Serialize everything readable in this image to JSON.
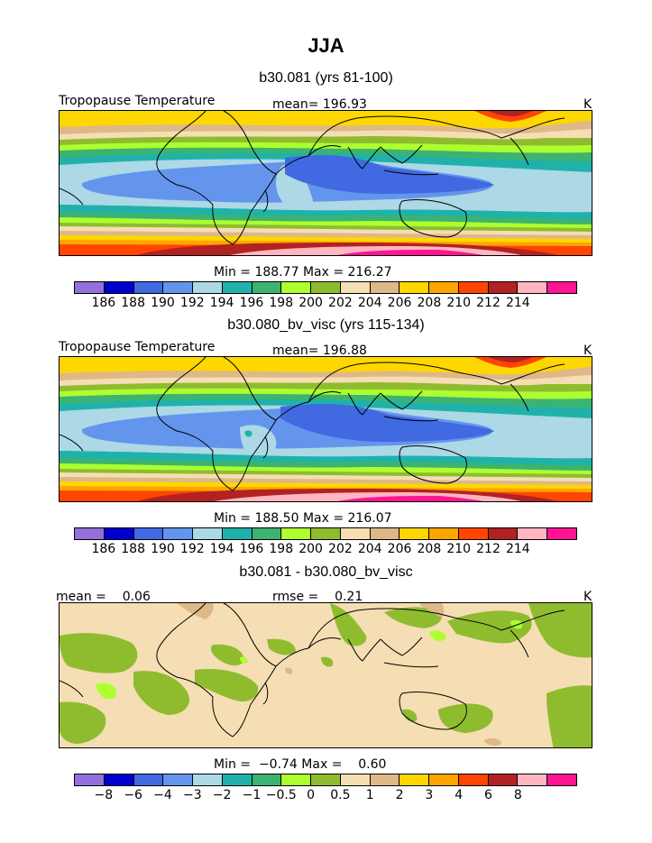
{
  "title": "JJA",
  "panel1": {
    "case_title": "b30.081 (yrs 81-100)",
    "variable": "Tropopause Temperature",
    "mean_label": "mean=",
    "mean_value": "196.93",
    "units": "K",
    "min_label": "Min =",
    "min_value": "188.77",
    "max_label": "Max =",
    "max_value": "216.27"
  },
  "panel2": {
    "case_title": "b30.080_bv_visc (yrs 115-134)",
    "variable": "Tropopause Temperature",
    "mean_label": "mean=",
    "mean_value": "196.88",
    "units": "K",
    "min_label": "Min =",
    "min_value": "188.50",
    "max_label": "Max =",
    "max_value": "216.07"
  },
  "panel3": {
    "case_title": "b30.081 - b30.080_bv_visc",
    "mean_label": "mean =",
    "mean_value": "0.06",
    "rmse_label": "rmse =",
    "rmse_value": "0.21",
    "units": "K",
    "min_label": "Min =",
    "min_value": "−0.74",
    "max_label": "Max =",
    "max_value": "0.60"
  },
  "colorbar_colors": [
    "#9370db",
    "#0000cd",
    "#4169e1",
    "#6495ed",
    "#add8e6",
    "#20b2aa",
    "#3cb371",
    "#adff2f",
    "#8fbc2f",
    "#f5deb3",
    "#deb887",
    "#ffd700",
    "#ffa500",
    "#ff4500",
    "#b22222",
    "#ffb6c1",
    "#ff1493"
  ],
  "abs_levels": [
    "186",
    "188",
    "190",
    "192",
    "194",
    "196",
    "198",
    "200",
    "202",
    "204",
    "206",
    "208",
    "210",
    "212",
    "214"
  ],
  "diff_levels": [
    "−8",
    "−6",
    "−4",
    "−3",
    "−2",
    "−1",
    "−0.5",
    "0",
    "0.5",
    "1",
    "2",
    "3",
    "4",
    "6",
    "8"
  ]
}
